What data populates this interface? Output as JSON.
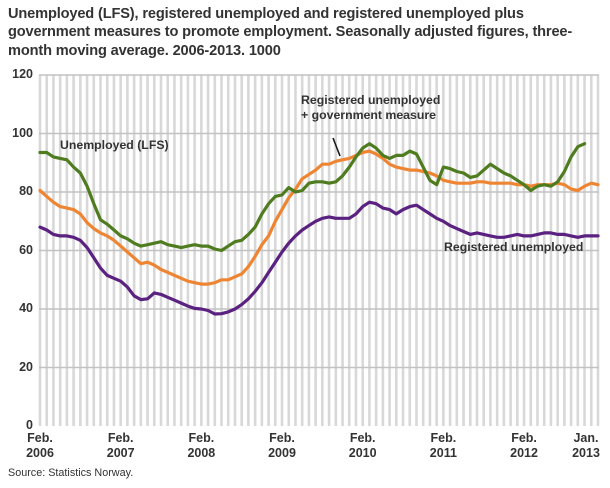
{
  "title": "Unemployed (LFS), registered unemployed and registered unemployed plus government measures to promote employment. Seasonally adjusted figures, three-month moving average. 2006-2013. 1000",
  "source": "Source: Statistics Norway.",
  "annotations": {
    "lfs_label": "Unemployed (LFS)",
    "reg_gov_label_line1": "Registered unemployed",
    "reg_gov_label_line2": "+ government measure",
    "reg_label": "Registered unemployed"
  },
  "chart_data": {
    "type": "line",
    "title": "Unemployed (LFS), registered unemployed and registered unemployed plus government measures to promote employment. Seasonally adjusted figures, three-month moving average. 2006-2013. 1000",
    "unit": "1000 persons",
    "x_frequency": "monthly",
    "x_start": "Feb. 2006",
    "x_end": "Jan. 2013",
    "ylim": [
      0,
      120
    ],
    "y_ticks": [
      0,
      20,
      40,
      60,
      80,
      100,
      120
    ],
    "grid": {
      "horizontal": true,
      "vertical_monthly_stripes": true
    },
    "legend_position": "inline-annotations",
    "colors": {
      "lfs": "#4e7c1f",
      "registered_plus_measures": "#ee8533",
      "registered": "#5a2181",
      "grid_stripe": "#d8d8d8",
      "grid_line": "#c2c2c2",
      "text": "#333333"
    },
    "x_ticks": [
      {
        "month_index": 0,
        "line1": "Feb.",
        "line2": "2006"
      },
      {
        "month_index": 12,
        "line1": "Feb.",
        "line2": "2007"
      },
      {
        "month_index": 24,
        "line1": "Feb.",
        "line2": "2008"
      },
      {
        "month_index": 36,
        "line1": "Feb.",
        "line2": "2009"
      },
      {
        "month_index": 48,
        "line1": "Feb.",
        "line2": "2010"
      },
      {
        "month_index": 60,
        "line1": "Feb.",
        "line2": "2011"
      },
      {
        "month_index": 72,
        "line1": "Feb.",
        "line2": "2012"
      },
      {
        "month_index": 83,
        "line1": "Jan.",
        "line2": "2013"
      }
    ],
    "series": [
      {
        "name": "Unemployed (LFS)",
        "color": "#4e7c1f",
        "values": [
          93.5,
          93.5,
          92,
          91.5,
          91,
          88.5,
          86.5,
          82,
          76,
          70.5,
          69,
          67,
          65,
          64,
          62.5,
          61.5,
          62,
          62.5,
          63,
          62,
          61.5,
          61,
          61.5,
          62,
          61.5,
          61.5,
          60.5,
          60,
          61.5,
          63,
          63.5,
          65.5,
          68,
          72.5,
          76,
          78.5,
          79,
          81.5,
          80,
          80.5,
          83,
          83.5,
          83.5,
          83,
          83.5,
          85.5,
          88.5,
          92,
          95,
          96.5,
          95,
          92.5,
          91.5,
          92.5,
          92.5,
          94,
          93,
          88.5,
          84,
          82.5,
          88.5,
          88,
          87,
          86.5,
          85,
          85.5,
          87.5,
          89.5,
          88,
          86.5,
          85.5,
          84,
          82.5,
          80.5,
          82,
          82.5,
          82,
          83.5,
          87,
          92,
          95.5,
          96.5,
          null,
          null
        ]
      },
      {
        "name": "Registered unemployed + government measure",
        "color": "#ee8533",
        "values": [
          80.5,
          78.5,
          76.5,
          75,
          74.5,
          74,
          72.5,
          69.5,
          67.5,
          66,
          65,
          63.5,
          61.5,
          59.5,
          57.5,
          55.5,
          56,
          55,
          53.5,
          52.5,
          51.5,
          50.5,
          49.5,
          49,
          48.5,
          48.5,
          49,
          50,
          50,
          51,
          52,
          54.5,
          58,
          62,
          65,
          70,
          74,
          78,
          81,
          84.5,
          86,
          87.5,
          89.5,
          89.5,
          90.5,
          91,
          91.5,
          92.5,
          93.5,
          94,
          93,
          91.5,
          89.5,
          88.5,
          88,
          87.5,
          87.5,
          87,
          86.5,
          85.5,
          84,
          83.5,
          83,
          83,
          83,
          83.5,
          83.5,
          83,
          83,
          83,
          83,
          82.5,
          82.5,
          82,
          82.5,
          82.5,
          82.5,
          83,
          82.5,
          81,
          80.5,
          82,
          83,
          82.5
        ]
      },
      {
        "name": "Registered unemployed",
        "color": "#5a2181",
        "values": [
          68,
          67,
          65.5,
          65,
          65,
          64.5,
          63.5,
          61,
          57.5,
          54,
          51.5,
          50.5,
          49.5,
          47.5,
          44.5,
          43.2,
          43.5,
          45.5,
          45,
          44,
          43,
          42,
          41,
          40.2,
          40,
          39.5,
          38.3,
          38.4,
          39,
          40,
          41.5,
          43.5,
          46,
          49,
          52.5,
          56,
          59.5,
          62.5,
          65,
          67,
          68.5,
          70,
          71,
          71.5,
          71,
          71,
          71,
          72.5,
          75,
          76.5,
          76,
          74.5,
          74,
          72.5,
          74,
          75,
          75.5,
          74,
          72.5,
          71,
          70,
          68.5,
          67.5,
          66.5,
          65.5,
          66,
          65.5,
          65,
          64.5,
          64.5,
          65,
          65.5,
          65,
          65,
          65.5,
          66,
          66,
          65.5,
          65.5,
          65,
          64.5,
          65,
          65,
          65
        ]
      }
    ]
  }
}
